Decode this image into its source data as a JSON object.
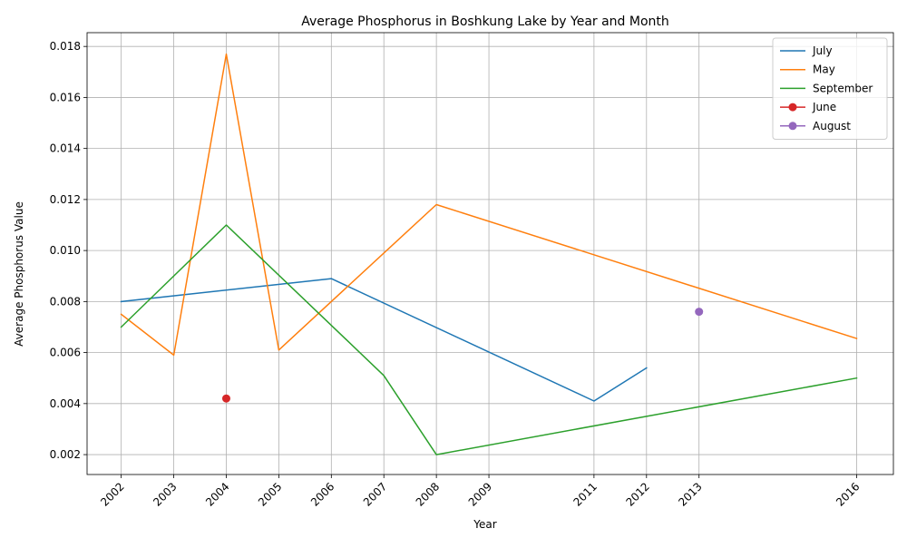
{
  "chart_data": {
    "type": "line",
    "title": "Average Phosphorus in Boshkung Lake by Year and Month",
    "xlabel": "Year",
    "ylabel": "Average Phosphorus Value",
    "xlim": [
      2001.35,
      2016.7
    ],
    "ylim": [
      0.00122,
      0.01854
    ],
    "x_ticks": [
      2002,
      2003,
      2004,
      2005,
      2006,
      2007,
      2008,
      2009,
      2011,
      2012,
      2013,
      2016
    ],
    "y_ticks": [
      0.002,
      0.004,
      0.006,
      0.008,
      0.01,
      0.012,
      0.014,
      0.016,
      0.018
    ],
    "y_tick_labels": [
      "0.002",
      "0.004",
      "0.006",
      "0.008",
      "0.010",
      "0.012",
      "0.014",
      "0.016",
      "0.018"
    ],
    "grid": true,
    "legend_position": "top-right",
    "series": [
      {
        "name": "July",
        "color": "#1f77b4",
        "marker": "none",
        "x": [
          2002,
          2006,
          2011,
          2012
        ],
        "y": [
          0.008,
          0.0089,
          0.0041,
          0.0054
        ]
      },
      {
        "name": "May",
        "color": "#ff7f0e",
        "marker": "none",
        "x": [
          2002,
          2003,
          2004,
          2005,
          2008,
          2016
        ],
        "y": [
          0.0075,
          0.0059,
          0.0177,
          0.0061,
          0.0118,
          0.00655
        ]
      },
      {
        "name": "September",
        "color": "#2ca02c",
        "marker": "none",
        "x": [
          2002,
          2004,
          2007,
          2008,
          2016
        ],
        "y": [
          0.007,
          0.011,
          0.0051,
          0.002,
          0.005
        ]
      },
      {
        "name": "June",
        "color": "#d62728",
        "marker": "circle",
        "x": [
          2004
        ],
        "y": [
          0.0042
        ]
      },
      {
        "name": "August",
        "color": "#9467bd",
        "marker": "circle",
        "x": [
          2013
        ],
        "y": [
          0.0076
        ]
      }
    ]
  }
}
